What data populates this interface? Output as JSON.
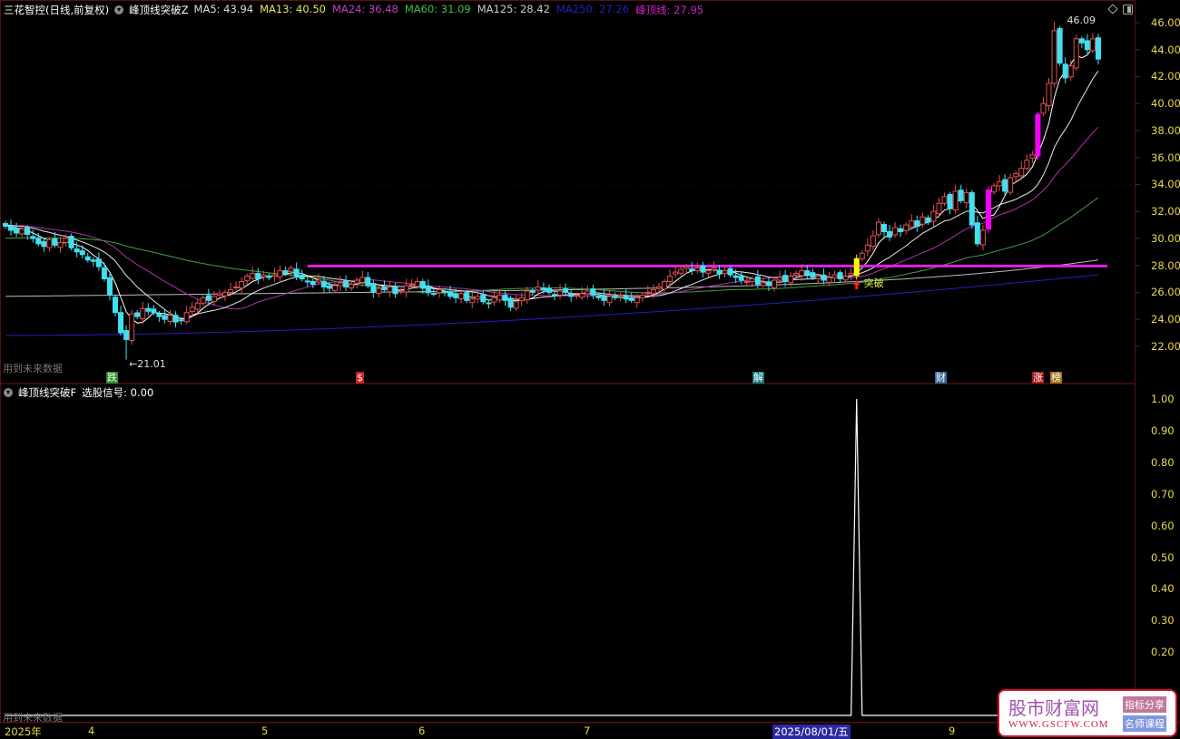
{
  "header": {
    "title": "三花智控(日线,前复权)",
    "indicator": "峰顶线突破Z",
    "ma": [
      {
        "label": "MA5: 43.94",
        "color": "#dddddd"
      },
      {
        "label": "MA13: 40.50",
        "color": "#e8e85a"
      },
      {
        "label": "MA24: 36.48",
        "color": "#c040c0"
      },
      {
        "label": "MA60: 31.09",
        "color": "#40c040"
      },
      {
        "label": "MA125: 28.42",
        "color": "#cccccc"
      },
      {
        "label": "MA250: 27.26",
        "color": "#2020c0"
      },
      {
        "label": "峰顶线: 27.95",
        "color": "#d020d0"
      }
    ],
    "icons": [
      "diamond-icon",
      "panel-toggle-icon"
    ]
  },
  "sub_header": {
    "indicator": "峰顶线突破F",
    "signal_label": "选股信号: 0.00"
  },
  "price_axis": [
    "46.00",
    "44.00",
    "42.00",
    "40.00",
    "38.00",
    "36.00",
    "34.00",
    "32.00",
    "30.00",
    "28.00",
    "26.00",
    "24.00",
    "22.00"
  ],
  "signal_axis": [
    "1.00",
    "0.90",
    "0.80",
    "0.70",
    "0.60",
    "0.50",
    "0.40",
    "0.30",
    "0.20"
  ],
  "date_axis": [
    {
      "label": "2025年"
    },
    {
      "label": "4"
    },
    {
      "label": "5"
    },
    {
      "label": "6"
    },
    {
      "label": "7"
    },
    {
      "label": "2025/08/01/五",
      "selected": true
    },
    {
      "label": "9"
    }
  ],
  "annotations": {
    "low": "←21.01",
    "high": "46.09",
    "breakout": "突破",
    "future_data_note": "用到未来数据",
    "future_data_note2": "用到未来数据"
  },
  "event_marks": [
    {
      "text": "跌",
      "color": "#2a8a2a"
    },
    {
      "text": "$",
      "color": "#d02020"
    },
    {
      "text": "解",
      "color": "#1a7a7a"
    },
    {
      "text": "财",
      "color": "#3a6a9a"
    },
    {
      "text": "涨",
      "color": "#a01818"
    },
    {
      "text": "榜",
      "color": "#a07018"
    }
  ],
  "peak_line": 27.95,
  "colors": {
    "up": "#e05050",
    "down": "#40e0f0",
    "breakout": "#ffff00",
    "strong": "#ff00ff",
    "peak_line": "#e020e0",
    "signal": "#ffffff"
  },
  "chart_data": {
    "type": "candlestick",
    "closes": [
      30.9,
      30.6,
      30.4,
      30.7,
      30.3,
      30.0,
      29.6,
      29.4,
      29.9,
      29.5,
      29.7,
      30.0,
      29.3,
      29.0,
      28.8,
      28.4,
      28.3,
      27.9,
      27.0,
      25.8,
      24.5,
      23.0,
      22.5,
      24.4,
      24.2,
      24.8,
      24.6,
      24.5,
      24.2,
      24.0,
      24.3,
      23.8,
      23.9,
      24.5,
      24.9,
      25.2,
      25.6,
      25.4,
      25.7,
      25.9,
      26.0,
      26.2,
      26.4,
      26.8,
      27.2,
      27.4,
      27.0,
      27.3,
      27.1,
      27.3,
      27.6,
      27.4,
      27.8,
      27.2,
      27.0,
      26.8,
      26.6,
      26.9,
      26.4,
      26.3,
      26.5,
      26.7,
      26.4,
      26.6,
      26.9,
      27.1,
      26.5,
      26.0,
      26.3,
      26.2,
      26.4,
      25.9,
      26.1,
      26.5,
      26.6,
      26.8,
      26.3,
      26.0,
      25.9,
      26.2,
      26.0,
      25.7,
      25.6,
      25.9,
      25.4,
      25.5,
      25.7,
      25.3,
      25.2,
      25.6,
      25.8,
      25.4,
      24.9,
      25.3,
      25.6,
      26.1,
      26.0,
      26.4,
      26.2,
      26.0,
      25.8,
      26.1,
      26.0,
      25.7,
      25.8,
      25.9,
      26.1,
      25.8,
      25.6,
      25.4,
      25.7,
      25.6,
      25.8,
      25.5,
      25.4,
      25.6,
      25.8,
      26.0,
      26.2,
      26.4,
      26.8,
      27.2,
      27.5,
      27.7,
      27.9,
      27.6,
      27.8,
      27.5,
      27.6,
      27.8,
      27.4,
      27.6,
      27.3,
      27.1,
      26.9,
      26.8,
      27.0,
      26.6,
      26.7,
      26.5,
      26.9,
      27.1,
      26.8,
      27.2,
      27.4,
      27.6,
      27.3,
      27.1,
      27.2,
      26.9,
      27.1,
      27.3,
      27.0,
      27.2,
      27.4,
      28.5,
      28.9,
      29.5,
      30.2,
      31.2,
      30.5,
      30.1,
      30.8,
      30.5,
      31.0,
      31.3,
      30.9,
      31.6,
      31.2,
      32.0,
      32.6,
      33.1,
      32.2,
      33.5,
      32.8,
      33.4,
      31.0,
      29.6,
      30.6,
      33.6,
      33.9,
      34.2,
      33.5,
      34.5,
      34.8,
      35.2,
      35.8,
      36.2,
      39.2,
      40.0,
      41.5,
      45.4,
      43.0,
      41.9,
      42.8,
      44.8,
      44.5,
      44.0,
      44.8,
      43.3
    ],
    "low_point": {
      "index": 22,
      "value": 21.01
    },
    "high_point": {
      "index": 191,
      "value": 46.09
    },
    "highlights": [
      {
        "index": 155,
        "kind": "breakout"
      },
      {
        "index": 179,
        "kind": "strong"
      },
      {
        "index": 188,
        "kind": "strong"
      }
    ],
    "signals": [
      {
        "index": 155,
        "value": 1.0
      }
    ],
    "y_range": [
      22,
      46
    ],
    "signal_range": [
      0,
      1
    ]
  },
  "watermark": {
    "title": "股市财富网",
    "url": "WWW.GSCFW.COM",
    "tag1": "指标分享",
    "tag2": "名师课程"
  }
}
